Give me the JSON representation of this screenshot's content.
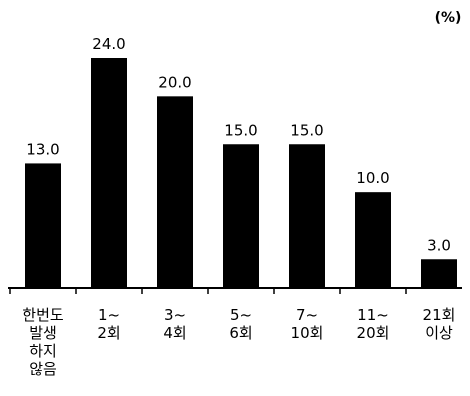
{
  "chart_data": {
    "type": "bar",
    "unit_label": "(%)",
    "categories": [
      [
        "한번도",
        "발생",
        "하지",
        "않음"
      ],
      [
        "1~",
        "2회"
      ],
      [
        "3~",
        "4회"
      ],
      [
        "5~",
        "6회"
      ],
      [
        "7~",
        "10회"
      ],
      [
        "11~",
        "20회"
      ],
      [
        "21회",
        "이상"
      ]
    ],
    "values": [
      13.0,
      24.0,
      20.0,
      15.0,
      15.0,
      10.0,
      3.0
    ],
    "value_labels": [
      "13.0",
      "24.0",
      "20.0",
      "15.0",
      "15.0",
      "10.0",
      "3.0"
    ],
    "ylim": [
      0,
      24
    ],
    "grid": false,
    "bar_color": "#000000"
  }
}
